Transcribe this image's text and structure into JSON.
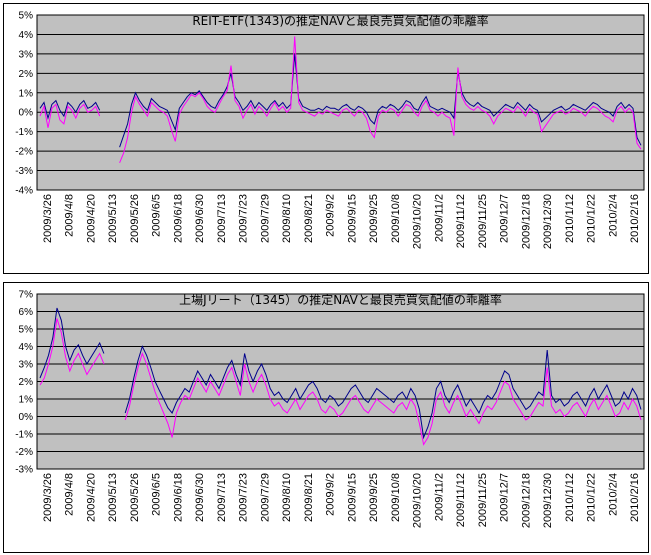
{
  "colors": {
    "plot_bg": "#c0c0c0",
    "grid": "#000000",
    "nav_line": "#00008b",
    "trade_line": "#ff00ff"
  },
  "chart_data": [
    {
      "type": "line",
      "title": "REIT-ETF(1343)の推定NAVと最良売買気配値の乖離率",
      "ylim": [
        -4,
        5
      ],
      "y_ticks": [
        "5%",
        "4%",
        "3%",
        "2%",
        "1%",
        "0%",
        "-1%",
        "-2%",
        "-3%",
        "-4%"
      ],
      "grid": true,
      "x_labels": [
        "2009/3/26",
        "2009/4/8",
        "2009/4/20",
        "2009/5/13",
        "2009/5/26",
        "2009/6/5",
        "2009/6/18",
        "2009/6/30",
        "2009/7/13",
        "2009/7/23",
        "2009/7/29",
        "2009/8/10",
        "2009/8/21",
        "2009/9/2",
        "2009/9/15",
        "2009/9/25",
        "2009/10/8",
        "2009/10/20",
        "2009/11/2",
        "2009/11/12",
        "2009/11/25",
        "2009/12/7",
        "2009/12/18",
        "2009/12/30",
        "2010/1/12",
        "2010/1/22",
        "2010/2/4",
        "2010/2/16"
      ],
      "series": [
        {
          "color": "#00008b",
          "values": [
            0.2,
            0.5,
            -0.3,
            0.4,
            0.6,
            0.1,
            -0.2,
            0.5,
            0.3,
            0.0,
            0.4,
            0.6,
            0.2,
            0.3,
            0.5,
            0.1,
            null,
            null,
            null,
            null,
            -1.8,
            -1.2,
            -0.6,
            0.4,
            1.0,
            0.6,
            0.3,
            0.1,
            0.7,
            0.5,
            0.3,
            0.2,
            0.1,
            -0.4,
            -0.9,
            0.2,
            0.5,
            0.8,
            1.0,
            0.9,
            1.1,
            0.8,
            0.5,
            0.3,
            0.2,
            0.6,
            0.9,
            1.3,
            2.0,
            0.8,
            0.5,
            0.1,
            0.3,
            0.6,
            0.2,
            0.5,
            0.3,
            0.1,
            0.4,
            0.6,
            0.3,
            0.5,
            0.2,
            0.4,
            3.0,
            0.7,
            0.3,
            0.2,
            0.1,
            0.1,
            0.2,
            0.1,
            0.3,
            0.2,
            0.2,
            0.1,
            0.3,
            0.4,
            0.2,
            0.1,
            0.3,
            0.2,
            0.0,
            -0.4,
            -0.6,
            0.1,
            0.3,
            0.2,
            0.4,
            0.3,
            0.1,
            0.3,
            0.6,
            0.5,
            0.2,
            0.1,
            0.5,
            0.8,
            0.3,
            0.2,
            0.1,
            0.2,
            0.1,
            0.0,
            -0.3,
            2.1,
            1.0,
            0.6,
            0.4,
            0.3,
            0.5,
            0.3,
            0.2,
            0.1,
            -0.2,
            0.0,
            0.2,
            0.4,
            0.3,
            0.2,
            0.5,
            0.3,
            0.1,
            0.4,
            0.2,
            0.1,
            -0.5,
            -0.3,
            -0.1,
            0.1,
            0.2,
            0.3,
            0.1,
            0.2,
            0.4,
            0.3,
            0.2,
            0.1,
            0.3,
            0.5,
            0.4,
            0.2,
            0.1,
            0.0,
            -0.2,
            0.3,
            0.5,
            0.2,
            0.4,
            0.2,
            -1.3,
            -1.7
          ]
        },
        {
          "color": "#ff00ff",
          "values": [
            -0.2,
            0.3,
            -0.8,
            0.2,
            0.4,
            -0.4,
            -0.6,
            0.3,
            0.1,
            -0.3,
            0.2,
            0.4,
            0.0,
            0.1,
            0.3,
            -0.2,
            null,
            null,
            null,
            null,
            -2.6,
            -2.1,
            -1.3,
            0.0,
            0.8,
            0.4,
            0.1,
            -0.2,
            0.5,
            0.3,
            0.1,
            0.0,
            -0.2,
            -0.9,
            -1.5,
            -0.1,
            0.3,
            0.6,
            0.9,
            0.8,
            1.0,
            0.7,
            0.3,
            0.1,
            0.0,
            0.4,
            0.8,
            1.1,
            2.4,
            0.6,
            0.3,
            -0.3,
            0.1,
            0.4,
            -0.1,
            0.3,
            0.1,
            -0.2,
            0.2,
            0.5,
            0.1,
            0.3,
            0.0,
            0.2,
            3.9,
            0.5,
            0.1,
            0.0,
            -0.1,
            -0.2,
            0.0,
            -0.1,
            0.1,
            0.0,
            -0.1,
            -0.2,
            0.1,
            0.2,
            0.0,
            -0.2,
            0.1,
            0.0,
            -0.3,
            -1.0,
            -1.3,
            -0.2,
            0.1,
            0.0,
            0.2,
            0.1,
            -0.2,
            0.1,
            0.4,
            0.3,
            0.0,
            -0.2,
            0.3,
            0.6,
            0.1,
            0.0,
            -0.2,
            0.0,
            -0.2,
            -0.3,
            -1.2,
            2.3,
            0.8,
            0.4,
            0.2,
            0.1,
            0.3,
            0.1,
            0.0,
            -0.2,
            -0.6,
            -0.2,
            0.0,
            0.2,
            0.1,
            0.0,
            0.3,
            0.1,
            -0.2,
            0.2,
            0.0,
            -0.1,
            -1.0,
            -0.7,
            -0.4,
            -0.1,
            0.0,
            0.1,
            -0.1,
            0.0,
            0.2,
            0.1,
            0.0,
            -0.2,
            0.1,
            0.3,
            0.2,
            0.0,
            -0.2,
            -0.3,
            -0.5,
            0.1,
            0.3,
            0.0,
            0.2,
            0.0,
            -1.6,
            -1.9
          ]
        }
      ]
    },
    {
      "type": "line",
      "title": "上場Jリート（1345）の推定NAVと最良売買気配値の乖離率",
      "ylim": [
        -3,
        7
      ],
      "y_ticks": [
        "7%",
        "6%",
        "5%",
        "4%",
        "3%",
        "2%",
        "1%",
        "0%",
        "-1%",
        "-2%",
        "-3%"
      ],
      "grid": true,
      "x_labels": [
        "2009/3/26",
        "2009/4/8",
        "2009/4/20",
        "2009/5/13",
        "2009/5/26",
        "2009/6/5",
        "2009/6/18",
        "2009/6/30",
        "2009/7/13",
        "2009/7/23",
        "2009/7/29",
        "2009/8/10",
        "2009/8/21",
        "2009/9/2",
        "2009/9/15",
        "2009/9/25",
        "2009/10/8",
        "2009/10/20",
        "2009/11/2",
        "2009/11/12",
        "2009/11/25",
        "2009/12/7",
        "2009/12/18",
        "2009/12/30",
        "2010/1/12",
        "2010/1/22",
        "2010/2/4",
        "2010/2/16"
      ],
      "series": [
        {
          "color": "#00008b",
          "values": [
            2.2,
            2.8,
            3.5,
            4.5,
            6.2,
            5.5,
            4.0,
            3.2,
            3.8,
            4.1,
            3.5,
            3.0,
            3.4,
            3.8,
            4.2,
            3.6,
            null,
            null,
            null,
            null,
            0.2,
            1.0,
            2.2,
            3.2,
            4.0,
            3.5,
            2.8,
            2.0,
            1.5,
            1.0,
            0.5,
            0.2,
            0.8,
            1.2,
            1.6,
            1.4,
            2.0,
            2.6,
            2.2,
            1.8,
            2.4,
            2.0,
            1.6,
            2.2,
            2.8,
            3.2,
            2.4,
            1.8,
            3.6,
            2.6,
            2.0,
            2.6,
            3.0,
            2.4,
            1.6,
            1.2,
            1.4,
            1.0,
            0.8,
            1.2,
            1.6,
            1.0,
            1.4,
            1.8,
            2.0,
            1.6,
            1.0,
            0.8,
            1.2,
            1.0,
            0.6,
            0.8,
            1.2,
            1.6,
            1.8,
            1.4,
            1.0,
            0.8,
            1.2,
            1.6,
            1.4,
            1.2,
            1.0,
            0.8,
            1.2,
            1.4,
            1.0,
            1.6,
            1.2,
            0.4,
            -1.2,
            -0.6,
            0.2,
            1.6,
            2.0,
            1.2,
            0.8,
            1.4,
            1.8,
            1.2,
            0.6,
            1.0,
            0.6,
            0.2,
            0.8,
            1.2,
            1.0,
            1.4,
            2.0,
            2.6,
            2.4,
            1.6,
            1.2,
            0.8,
            0.4,
            0.6,
            1.0,
            1.4,
            1.2,
            3.8,
            1.2,
            0.8,
            1.0,
            0.6,
            0.8,
            1.2,
            1.4,
            1.0,
            0.6,
            1.2,
            1.6,
            1.0,
            1.4,
            1.8,
            1.2,
            0.6,
            0.8,
            1.4,
            1.0,
            1.6,
            1.2,
            0.4
          ]
        },
        {
          "color": "#ff00ff",
          "values": [
            1.8,
            2.2,
            3.0,
            4.0,
            5.6,
            4.8,
            3.4,
            2.6,
            3.2,
            3.6,
            3.0,
            2.4,
            2.8,
            3.2,
            3.6,
            3.0,
            null,
            null,
            null,
            null,
            -0.2,
            0.6,
            1.8,
            2.8,
            3.6,
            3.0,
            2.2,
            1.4,
            0.8,
            0.2,
            -0.4,
            -1.2,
            0.2,
            0.8,
            1.2,
            1.0,
            1.6,
            2.2,
            1.8,
            1.4,
            2.0,
            1.6,
            1.2,
            1.8,
            2.4,
            2.8,
            2.0,
            1.2,
            3.0,
            2.0,
            1.4,
            2.0,
            2.4,
            1.8,
            1.0,
            0.6,
            0.8,
            0.4,
            0.2,
            0.6,
            1.0,
            0.4,
            0.8,
            1.2,
            1.4,
            1.0,
            0.4,
            0.2,
            0.6,
            0.4,
            0.0,
            0.2,
            0.6,
            1.0,
            1.2,
            0.8,
            0.4,
            0.2,
            0.6,
            1.0,
            0.8,
            0.6,
            0.4,
            0.2,
            0.6,
            0.8,
            0.4,
            1.0,
            0.6,
            -0.4,
            -1.6,
            -1.2,
            -0.4,
            1.0,
            1.4,
            0.6,
            0.2,
            0.8,
            1.2,
            0.6,
            0.0,
            0.4,
            0.0,
            -0.4,
            0.2,
            0.6,
            0.4,
            0.8,
            1.4,
            2.0,
            1.8,
            1.0,
            0.6,
            0.2,
            -0.2,
            0.0,
            0.4,
            0.8,
            0.6,
            2.8,
            0.6,
            0.2,
            0.4,
            0.0,
            0.2,
            0.6,
            0.8,
            0.4,
            0.0,
            0.6,
            1.0,
            0.4,
            0.8,
            1.2,
            0.6,
            0.0,
            0.2,
            0.8,
            0.4,
            1.0,
            0.6,
            -0.2
          ]
        }
      ]
    }
  ]
}
